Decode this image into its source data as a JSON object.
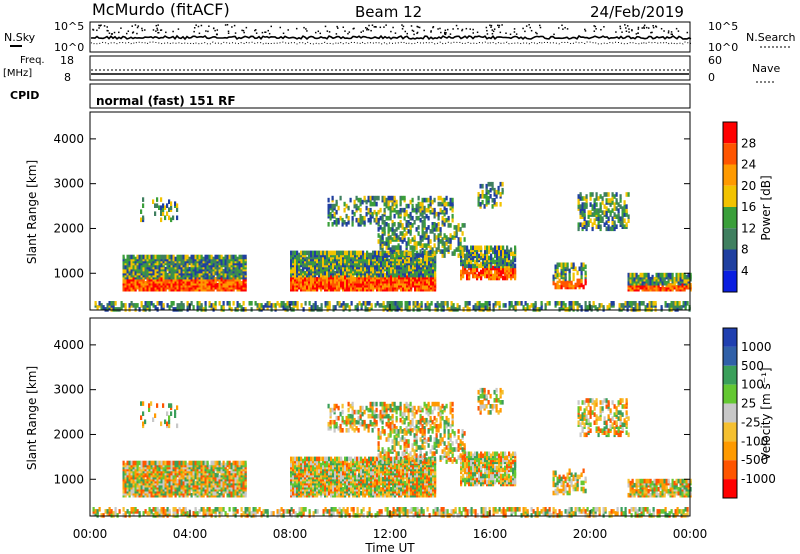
{
  "header": {
    "station": "McMurdo (fitACF)",
    "beam": "Beam 12",
    "date": "24/Feb/2019"
  },
  "top_panels": {
    "nsky_label": "N.Sky",
    "nsky_top": "10^5",
    "nsky_bottom": "10^0",
    "nsearch_label": "N.Search",
    "nsearch_top": "10^5",
    "nsearch_bottom": "10^0",
    "freq_label_1": "Freq.",
    "freq_label_2": "[MHz]",
    "freq_top": "18",
    "freq_bottom": "8",
    "nave_label": "Nave",
    "nave_top": "60",
    "nave_bottom": "0",
    "cpid_label": "CPID",
    "cpid_text": "normal (fast) 151 RF"
  },
  "chart_data": [
    {
      "type": "heatmap",
      "name": "power",
      "ylabel": "Slant Range [km]",
      "yticks": [
        "1000",
        "2000",
        "3000",
        "4000"
      ],
      "colorbar_label": "Power [dB]",
      "colorbar_ticks": [
        "28",
        "24",
        "20",
        "16",
        "12",
        "8",
        "4"
      ],
      "colorbar_colors": [
        "#ff0000",
        "#ff5500",
        "#ff9a00",
        "#f2c300",
        "#3a9f3a",
        "#3f7f5f",
        "#1f3fa0",
        "#0a1ee0"
      ],
      "ylim": [
        180,
        4600
      ]
    },
    {
      "type": "heatmap",
      "name": "velocity",
      "ylabel": "Slant Range [km]",
      "yticks": [
        "1000",
        "2000",
        "3000",
        "4000"
      ],
      "colorbar_label": "Velocity [m s⁻¹]",
      "colorbar_ticks": [
        "1000",
        "500",
        "100",
        "25",
        "-25",
        "-100",
        "-500",
        "-1000"
      ],
      "colorbar_colors": [
        "#2040b0",
        "#3060a8",
        "#3a9f5a",
        "#64c832",
        "#c8c8c8",
        "#f5c030",
        "#ff9a00",
        "#ff5500",
        "#ff0000"
      ],
      "ylim": [
        180,
        4600
      ]
    }
  ],
  "x_axis": {
    "ticks": [
      "00:00",
      "04:00",
      "08:00",
      "12:00",
      "16:00",
      "20:00",
      "00:00"
    ],
    "label": "Time UT"
  }
}
